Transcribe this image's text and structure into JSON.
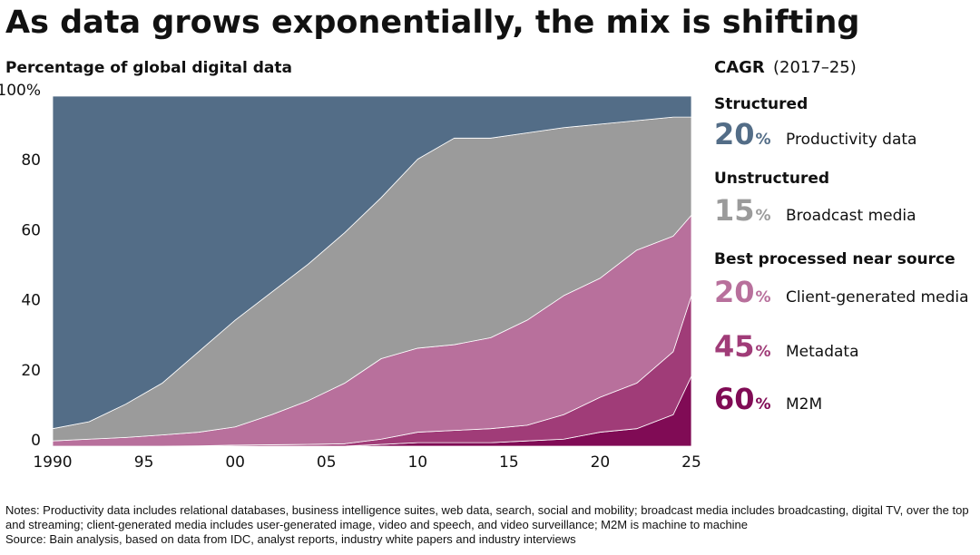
{
  "chart_data": {
    "type": "stacked-area",
    "title": "As data grows exponentially, the mix is shifting",
    "subtitle": "Percentage of global digital data",
    "legend_title": "CAGR",
    "legend_subtitle": "(2017–25)",
    "x": [
      1990,
      1992,
      1994,
      1996,
      1998,
      2000,
      2002,
      2004,
      2006,
      2008,
      2010,
      2012,
      2014,
      2016,
      2018,
      2020,
      2022,
      2024,
      2025
    ],
    "xlim": [
      1990,
      2025
    ],
    "xticks": [
      1990,
      {
        "value": 1995,
        "label": "95"
      },
      {
        "value": 2000,
        "label": "00"
      },
      {
        "value": 2005,
        "label": "05"
      },
      {
        "value": 2010,
        "label": "10"
      },
      {
        "value": 2015,
        "label": "15"
      },
      {
        "value": 2020,
        "label": "20"
      },
      {
        "value": 2025,
        "label": "25"
      }
    ],
    "ylim": [
      0,
      100
    ],
    "yticks": [
      0,
      20,
      40,
      60,
      80,
      {
        "value": 100,
        "label": "100%"
      }
    ],
    "grid": false,
    "series": [
      {
        "name": "Productivity data",
        "group": "Structured",
        "cagr": 20,
        "cagr_unit": "%",
        "color": "#536d87",
        "values": [
          95,
          93,
          88,
          82,
          73,
          64,
          56,
          48,
          39,
          29,
          18,
          12,
          12,
          10.5,
          9,
          8,
          7,
          6,
          6
        ]
      },
      {
        "name": "Broadcast media",
        "group": "Unstructured",
        "cagr": 15,
        "cagr_unit": "%",
        "color": "#9b9b9b",
        "values": [
          3.5,
          5,
          9.5,
          14.8,
          23,
          30.5,
          35,
          39,
          43,
          46,
          54,
          59,
          57,
          53.5,
          48,
          44,
          37,
          34,
          28
        ]
      },
      {
        "name": "Client-generated media",
        "group": "Best processed near source",
        "cagr": 20,
        "cagr_unit": "%",
        "color": "#b8709c",
        "values": [
          1.5,
          2,
          2.5,
          3.2,
          3.9,
          5.2,
          8.6,
          12.5,
          17.3,
          23,
          24,
          24.5,
          26,
          30,
          34,
          34,
          38,
          33,
          23
        ]
      },
      {
        "name": "Metadata",
        "cagr": 45,
        "cagr_unit": "%",
        "color": "#a03c78",
        "values": [
          0,
          0,
          0,
          0,
          0.1,
          0.3,
          0.4,
          0.5,
          0.7,
          1.5,
          3,
          3.5,
          4,
          4.5,
          7,
          10,
          13,
          18,
          23
        ]
      },
      {
        "name": "M2M",
        "cagr": 60,
        "cagr_unit": "%",
        "color": "#800b55",
        "values": [
          0,
          0,
          0,
          0,
          0,
          0,
          0,
          0,
          0,
          0.5,
          1,
          1,
          1,
          1.5,
          2,
          4,
          5,
          9,
          20
        ]
      }
    ],
    "notes": "Notes: Productivity data includes relational databases, business intelligence suites, web data, search, social and mobility; broadcast media includes broadcasting, digital TV, over the top and streaming; client-generated media includes user-generated image, video and speech, and video surveillance; M2M is machine to machine",
    "source": "Source: Bain analysis, based on data from IDC, analyst reports, industry white papers and industry interviews"
  }
}
